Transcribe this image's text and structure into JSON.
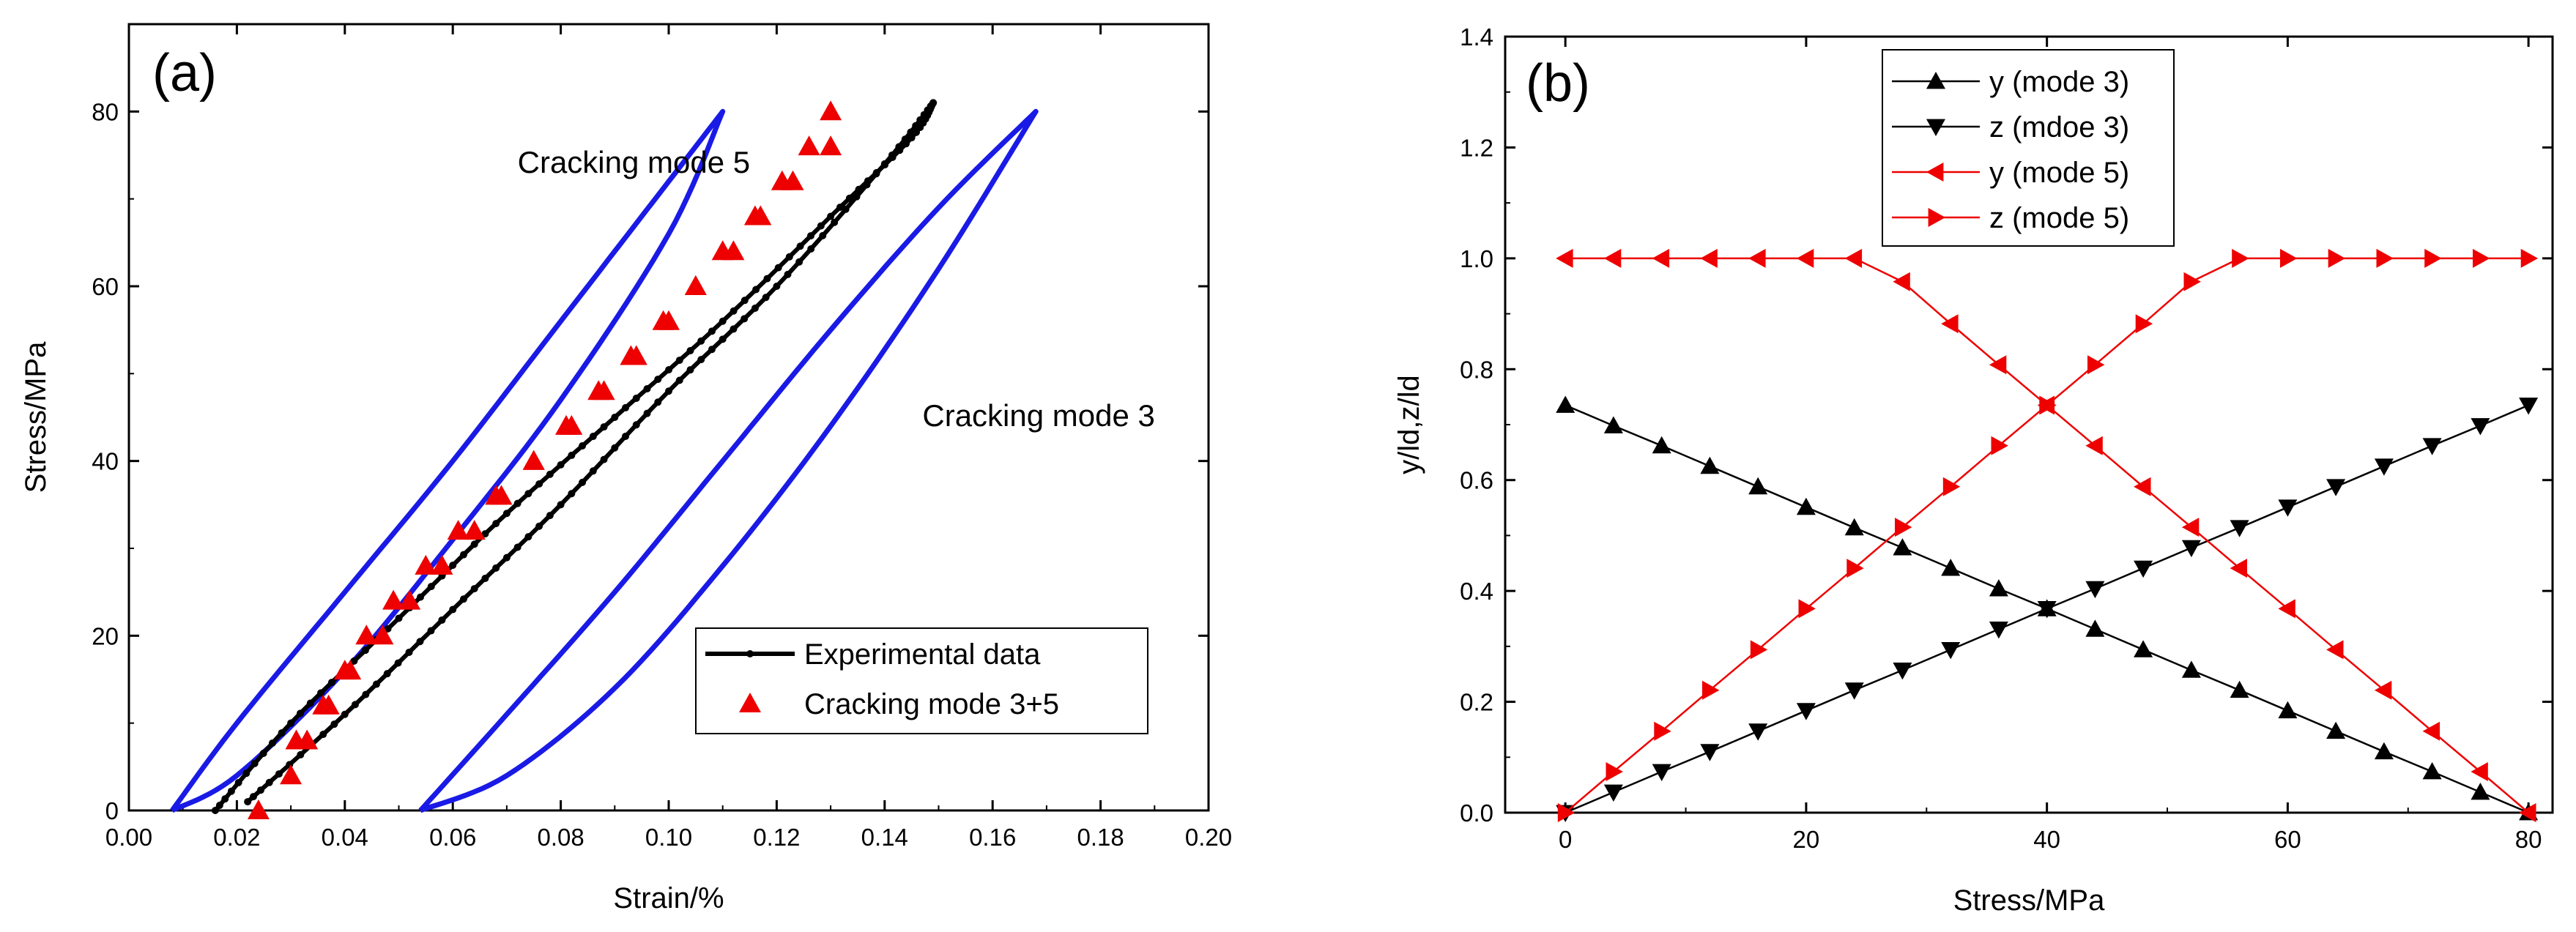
{
  "colors": {
    "blue": "#1a1ae6",
    "red": "#ee0000",
    "black": "#000000"
  },
  "chart_data": [
    {
      "type": "line",
      "panel_label": "(a)",
      "xlabel": "Strain/%",
      "ylabel": "Stress/MPa",
      "xlim": [
        0.0,
        0.2
      ],
      "ylim": [
        0,
        90
      ],
      "x_ticks": [
        "0.00",
        "0.02",
        "0.04",
        "0.06",
        "0.08",
        "0.10",
        "0.12",
        "0.14",
        "0.16",
        "0.18",
        "0.20"
      ],
      "y_ticks": [
        "0",
        "20",
        "40",
        "60",
        "80"
      ],
      "annotations": [
        {
          "id": "mode5",
          "text": "Cracking mode 5",
          "x": 0.072,
          "y": 73
        },
        {
          "id": "mode3",
          "text": "Cracking mode 3",
          "x": 0.147,
          "y": 44
        }
      ],
      "series": [
        {
          "name": "Experimental data",
          "color": "#000000",
          "marker": "dot",
          "loading_x": [
            0.016,
            0.03,
            0.05,
            0.07,
            0.09,
            0.11,
            0.13,
            0.145,
            0.149
          ],
          "loading_y": [
            0,
            10,
            22,
            34,
            45,
            56,
            68,
            77,
            81
          ],
          "unloading_x": [
            0.149,
            0.14,
            0.12,
            0.1,
            0.08,
            0.06,
            0.04,
            0.022
          ],
          "unloading_y": [
            81,
            74,
            60,
            48,
            35,
            23,
            11,
            1
          ]
        },
        {
          "name": "Cracking mode 3+5",
          "color": "#ee0000",
          "marker": "triangle-up",
          "x": [
            0.024,
            0.03,
            0.033,
            0.037,
            0.04,
            0.044,
            0.049,
            0.055,
            0.061,
            0.068,
            0.075,
            0.082,
            0.088,
            0.094,
            0.1,
            0.105,
            0.11,
            0.116,
            0.123,
            0.13,
            0.13,
            0.126,
            0.121,
            0.117,
            0.112,
            0.105,
            0.099,
            0.093,
            0.087,
            0.081,
            0.075,
            0.069,
            0.064,
            0.058,
            0.052,
            0.047,
            0.041,
            0.036,
            0.031
          ],
          "y": [
            0,
            4,
            8,
            12,
            16,
            20,
            24,
            28,
            32,
            36,
            40,
            44,
            48,
            52,
            56,
            60,
            64,
            68,
            72,
            76,
            80,
            76,
            72,
            68,
            64,
            60,
            56,
            52,
            48,
            44,
            40,
            36,
            32,
            28,
            24,
            20,
            16,
            12,
            8
          ]
        },
        {
          "name": "Cracking mode 5",
          "color": "#1a1ae6",
          "marker": "none",
          "loading_x": [
            0.008,
            0.02,
            0.04,
            0.06,
            0.08,
            0.1,
            0.11
          ],
          "loading_y": [
            0,
            10,
            25,
            40,
            56,
            72,
            80
          ],
          "unloading_x": [
            0.11,
            0.1,
            0.08,
            0.06,
            0.04,
            0.02,
            0.008
          ],
          "unloading_y": [
            80,
            66,
            47,
            31,
            16,
            4,
            0
          ]
        },
        {
          "name": "Cracking mode 3",
          "color": "#1a1ae6",
          "marker": "none",
          "loading_x": [
            0.054,
            0.07,
            0.09,
            0.11,
            0.13,
            0.15,
            0.168
          ],
          "loading_y": [
            0,
            11,
            25,
            40,
            55,
            69,
            80
          ],
          "unloading_x": [
            0.168,
            0.15,
            0.13,
            0.11,
            0.09,
            0.07,
            0.054
          ],
          "unloading_y": [
            80,
            62,
            44,
            28,
            14,
            4,
            0
          ]
        }
      ],
      "legend": [
        "Experimental data",
        "Cracking mode 3+5"
      ],
      "legend_position": "bottom-right"
    },
    {
      "type": "line",
      "panel_label": "(b)",
      "xlabel": "Stress/MPa",
      "ylabel": "y/ld,z/ld",
      "xlim": [
        -5,
        82
      ],
      "ylim": [
        0.0,
        1.4
      ],
      "x_ticks": [
        "0",
        "20",
        "40",
        "60",
        "80"
      ],
      "y_ticks": [
        "0.0",
        "0.2",
        "0.4",
        "0.6",
        "0.8",
        "1.0",
        "1.2",
        "1.4"
      ],
      "x": [
        0,
        4,
        8,
        12,
        16,
        20,
        24,
        28,
        32,
        36,
        40,
        44,
        48,
        52,
        56,
        60,
        64,
        68,
        72,
        76,
        80
      ],
      "series": [
        {
          "name": "y (mode 3)",
          "color": "#000000",
          "marker": "triangle-up",
          "values": [
            0.735,
            0.698,
            0.662,
            0.625,
            0.588,
            0.551,
            0.514,
            0.478,
            0.441,
            0.404,
            0.368,
            0.331,
            0.294,
            0.257,
            0.221,
            0.184,
            0.147,
            0.11,
            0.074,
            0.037,
            0.0
          ]
        },
        {
          "name": "z (mdoe 3)",
          "color": "#000000",
          "marker": "triangle-down",
          "values": [
            0.0,
            0.037,
            0.074,
            0.11,
            0.147,
            0.184,
            0.221,
            0.257,
            0.294,
            0.331,
            0.368,
            0.404,
            0.441,
            0.478,
            0.514,
            0.551,
            0.588,
            0.625,
            0.662,
            0.698,
            0.735
          ]
        },
        {
          "name": "y (mode 5)",
          "color": "#ee0000",
          "marker": "triangle-left",
          "values": [
            1.0,
            1.0,
            1.0,
            1.0,
            1.0,
            1.0,
            1.0,
            0.958,
            0.882,
            0.808,
            0.735,
            0.662,
            0.588,
            0.515,
            0.441,
            0.368,
            0.294,
            0.221,
            0.147,
            0.074,
            0.0
          ]
        },
        {
          "name": "z (mode 5)",
          "color": "#ee0000",
          "marker": "triangle-right",
          "values": [
            0.0,
            0.074,
            0.147,
            0.221,
            0.294,
            0.368,
            0.441,
            0.515,
            0.588,
            0.662,
            0.735,
            0.808,
            0.882,
            0.958,
            1.0,
            1.0,
            1.0,
            1.0,
            1.0,
            1.0,
            1.0
          ]
        }
      ],
      "legend_position": "top-left"
    }
  ]
}
